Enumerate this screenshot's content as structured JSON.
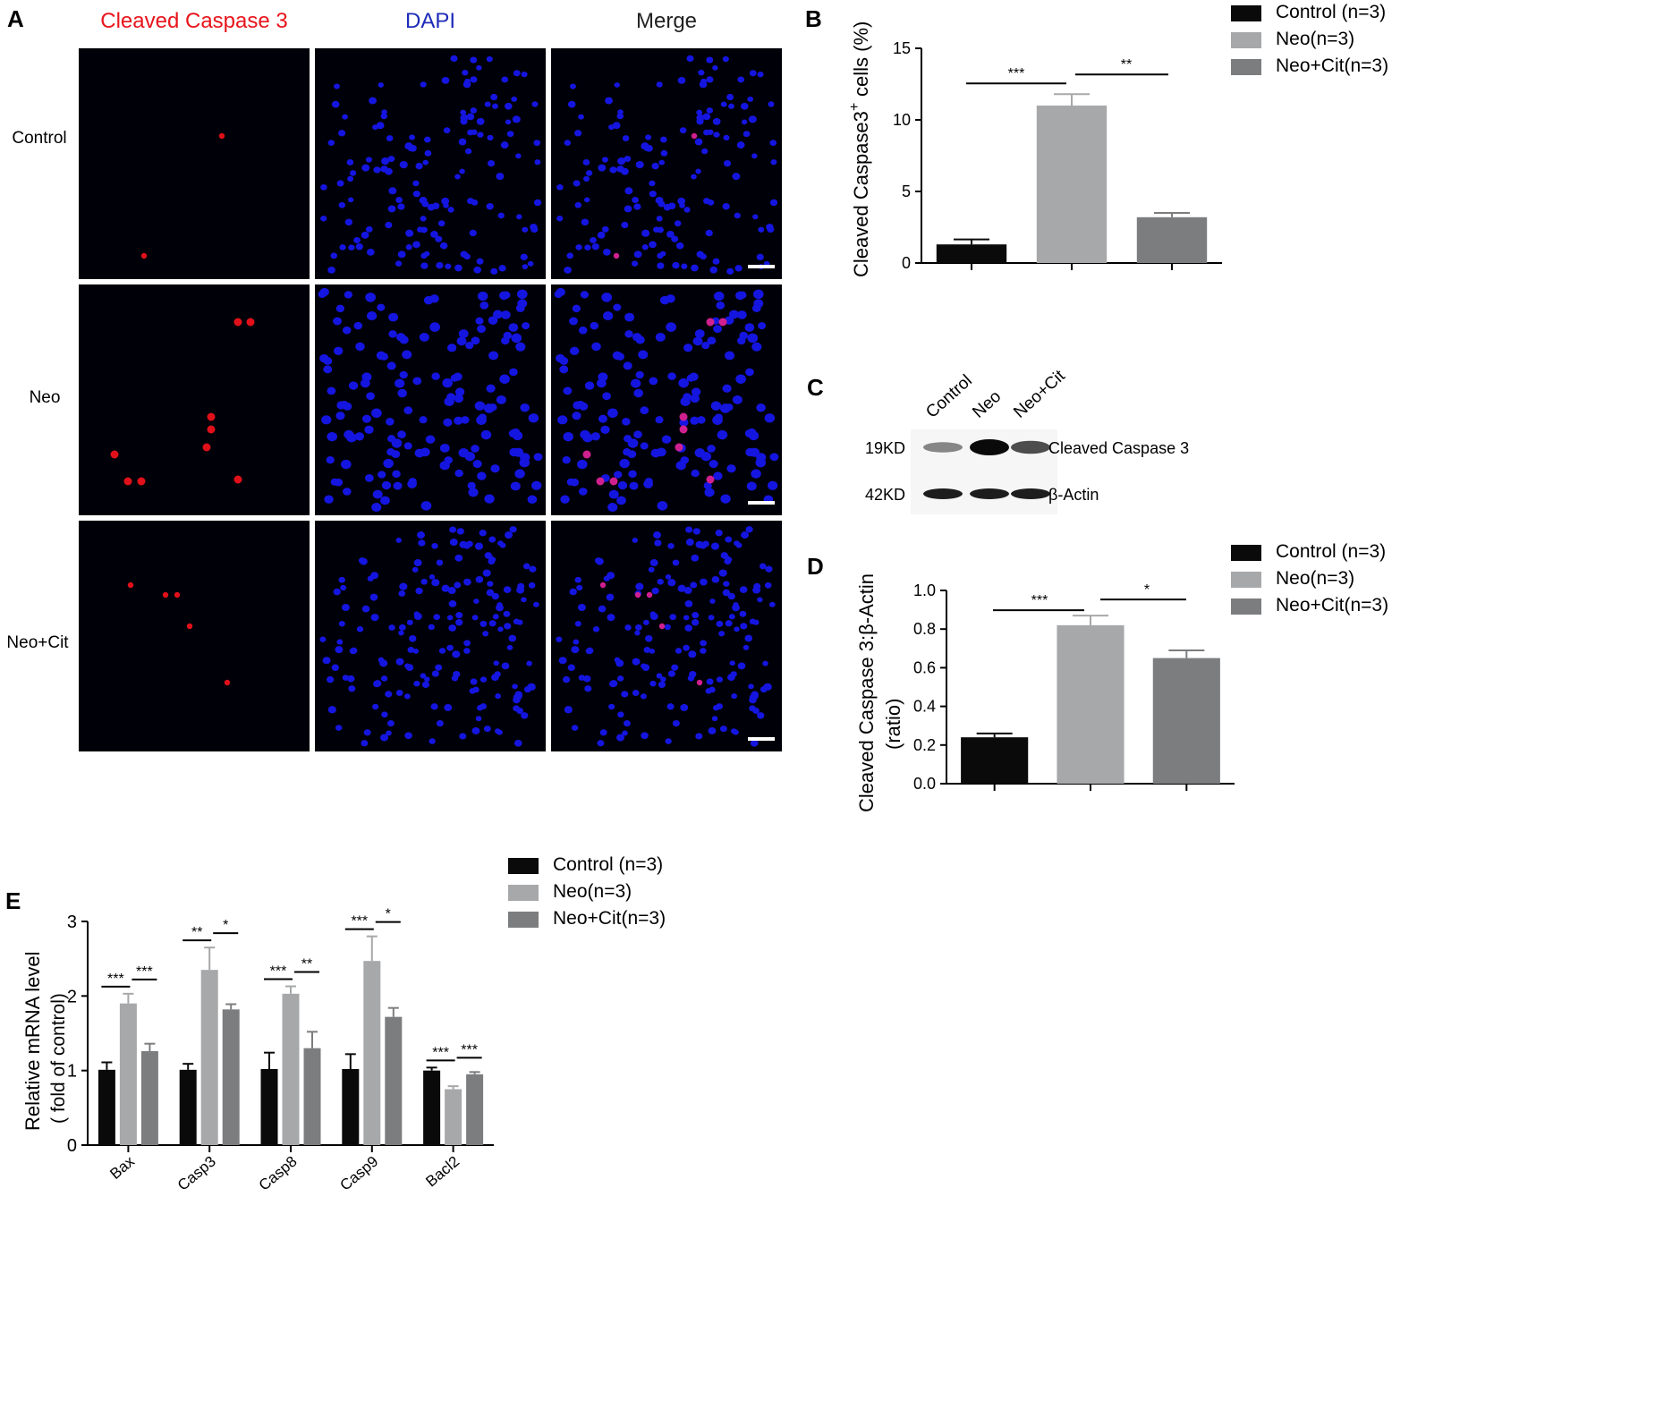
{
  "panel_a": {
    "letter": "A",
    "column_headers": [
      "Cleaved Caspase 3",
      "DAPI",
      "Merge"
    ],
    "header_colors": [
      "#e8141b",
      "#1d2bb8",
      "#222222"
    ],
    "row_labels": [
      "Control",
      "Neo",
      "Neo+Cit"
    ]
  },
  "panel_c": {
    "letter": "C",
    "lanes": [
      "Control",
      "Neo",
      "Neo+Cit"
    ],
    "bands": [
      {
        "size": "19KD",
        "name": "Cleaved Caspase 3",
        "intensities": [
          0.35,
          1.0,
          0.65
        ]
      },
      {
        "size": "42KD",
        "name": "β-Actin",
        "intensities": [
          0.9,
          0.9,
          0.9
        ]
      }
    ]
  },
  "legend_labels": [
    "Control (n=3)",
    "Neo(n=3)",
    "Neo+Cit(n=3)"
  ],
  "colors": {
    "control": "#0a0a0a",
    "neo": "#a7a8aa",
    "neo_cit": "#7c7d7f"
  },
  "chart_data": [
    {
      "letter": "B",
      "type": "bar",
      "categories": [
        "Control",
        "Neo",
        "Neo+Cit"
      ],
      "values": [
        1.3,
        11.0,
        3.2
      ],
      "errors": [
        0.35,
        0.8,
        0.3
      ],
      "ylabel_main": "Cleaved Caspase3",
      "ylabel_sup": "+",
      "ylabel_tail": "cells  (%)",
      "ylim": [
        0,
        15
      ],
      "yticks": [
        "0",
        "5",
        "10",
        "15"
      ],
      "significance": [
        "***",
        "**"
      ]
    },
    {
      "letter": "D",
      "type": "bar",
      "categories": [
        "Control",
        "Neo",
        "Neo+Cit"
      ],
      "values": [
        0.24,
        0.82,
        0.65
      ],
      "errors": [
        0.02,
        0.05,
        0.04
      ],
      "ylabel_line1": "Cleaved Caspase 3:β-Actin",
      "ylabel_line2": "(ratio)",
      "ylim": [
        0,
        1.0
      ],
      "yticks": [
        "0.0",
        "0.2",
        "0.4",
        "0.6",
        "0.8",
        "1.0"
      ],
      "significance": [
        "***",
        "*"
      ]
    },
    {
      "letter": "E",
      "type": "bar",
      "categories": [
        "Bax",
        "Casp3",
        "Casp8",
        "Casp9",
        "Bacl2"
      ],
      "series": [
        {
          "name": "Control (n=3)",
          "values": [
            1.01,
            1.01,
            1.02,
            1.02,
            1.0
          ],
          "errors": [
            0.1,
            0.08,
            0.22,
            0.2,
            0.04
          ]
        },
        {
          "name": "Neo(n=3)",
          "values": [
            1.9,
            2.35,
            2.03,
            2.47,
            0.75
          ],
          "errors": [
            0.13,
            0.3,
            0.1,
            0.33,
            0.04
          ]
        },
        {
          "name": "Neo+Cit(n=3)",
          "values": [
            1.26,
            1.82,
            1.3,
            1.72,
            0.95
          ],
          "errors": [
            0.1,
            0.07,
            0.22,
            0.12,
            0.03
          ]
        }
      ],
      "significance": [
        [
          "***",
          "***"
        ],
        [
          "**",
          "*"
        ],
        [
          "***",
          "**"
        ],
        [
          "***",
          "*"
        ],
        [
          "***",
          "***"
        ]
      ],
      "ylabel_line1": "Relative mRNA level",
      "ylabel_line2": "( fold of control)",
      "ylim": [
        0,
        3
      ],
      "yticks": [
        "0",
        "1",
        "2",
        "3"
      ]
    }
  ]
}
